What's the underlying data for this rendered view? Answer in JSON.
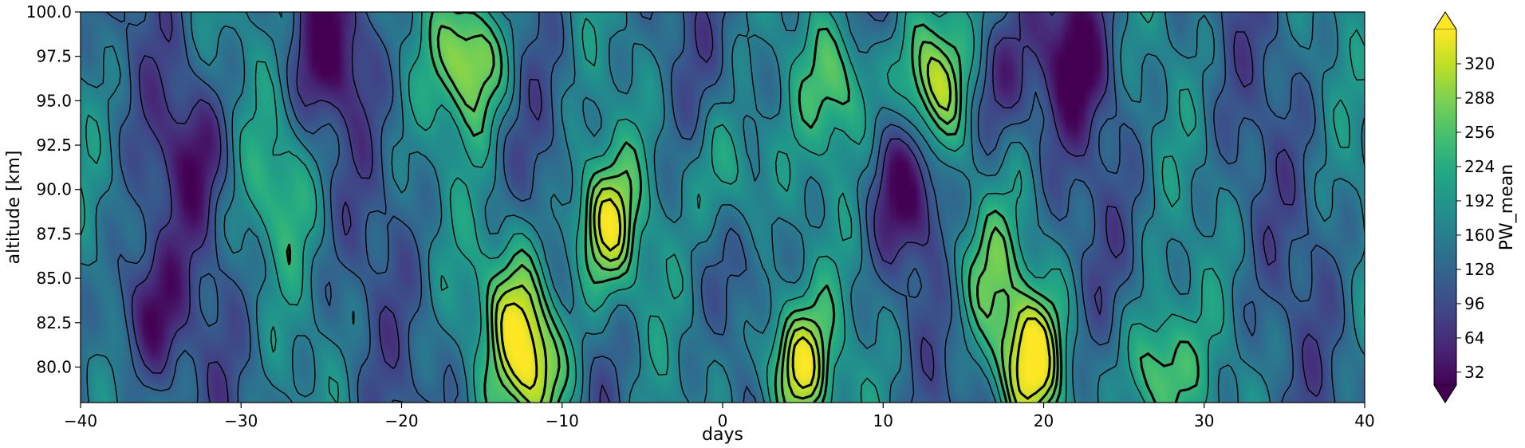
{
  "chart_data": {
    "type": "heatmap",
    "title": "",
    "xlabel": "days",
    "ylabel": "altitude [km]",
    "xlim": [
      -40,
      40
    ],
    "ylim": [
      78,
      100
    ],
    "xticks": [
      "−40",
      "−30",
      "−20",
      "−10",
      "0",
      "10",
      "20",
      "30",
      "40"
    ],
    "xtick_values": [
      -40,
      -30,
      -20,
      -10,
      0,
      10,
      20,
      30,
      40
    ],
    "yticks": [
      "80.0",
      "82.5",
      "85.0",
      "87.5",
      "90.0",
      "92.5",
      "95.0",
      "97.5",
      "100.0"
    ],
    "ytick_values": [
      80,
      82.5,
      85,
      87.5,
      90,
      92.5,
      95,
      97.5,
      100
    ],
    "colorbar": {
      "label": "PW_mean",
      "range": [
        20,
        352
      ],
      "ticks": [
        "32",
        "64",
        "96",
        "128",
        "160",
        "192",
        "224",
        "256",
        "288",
        "320"
      ],
      "tick_values": [
        32,
        64,
        96,
        128,
        160,
        192,
        224,
        256,
        288,
        320
      ],
      "extend": "both",
      "colormap": "viridis"
    },
    "features": [
      {
        "day": -11.5,
        "alt": 80.0,
        "value": 340
      },
      {
        "day": 4.5,
        "alt": 80.0,
        "value": 350
      },
      {
        "day": 19.0,
        "alt": 80.5,
        "value": 330
      },
      {
        "day": 27.0,
        "alt": 79.5,
        "value": 300
      },
      {
        "day": -7.5,
        "alt": 88.0,
        "value": 320
      },
      {
        "day": -15.5,
        "alt": 97.5,
        "value": 320
      },
      {
        "day": 7.5,
        "alt": 96.0,
        "value": 260
      },
      {
        "day": 13.0,
        "alt": 96.0,
        "value": 340
      },
      {
        "day": 17.0,
        "alt": 96.0,
        "value": 40
      },
      {
        "day": -13.0,
        "alt": 84.0,
        "value": 250
      },
      {
        "day": 16.0,
        "alt": 85.5,
        "value": 240
      },
      {
        "day": -27.5,
        "alt": 90.0,
        "value": 210
      },
      {
        "day": 0.5,
        "alt": 91.0,
        "value": 250
      },
      {
        "day": -36.0,
        "alt": 83.0,
        "value": 25
      },
      {
        "day": -24.5,
        "alt": 98.0,
        "value": 40
      },
      {
        "day": 22.0,
        "alt": 97.5,
        "value": 30
      },
      {
        "day": 11.5,
        "alt": 90.0,
        "value": 45
      },
      {
        "day": -33.0,
        "alt": 92.0,
        "value": 60
      }
    ]
  }
}
